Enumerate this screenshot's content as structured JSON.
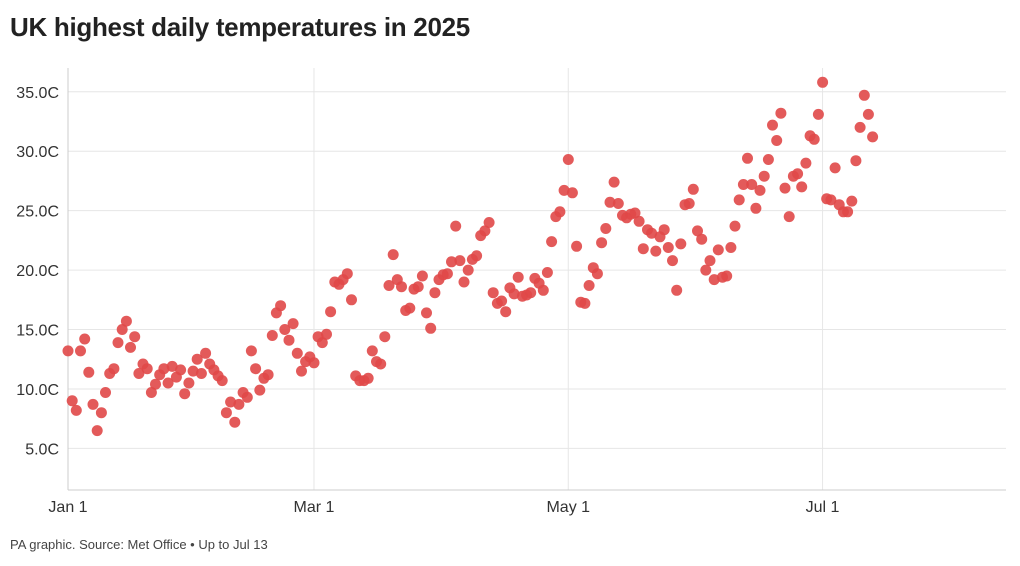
{
  "title": "UK highest daily temperatures in 2025",
  "source": "PA graphic. Source: Met Office • Up to Jul 13",
  "colors": {
    "point": "#e04848",
    "grid": "#e6e6e6",
    "axis": "#cccccc"
  },
  "chart_data": {
    "type": "scatter",
    "title": "UK highest daily temperatures in 2025",
    "xlabel": "",
    "ylabel": "",
    "x_axis_type": "date",
    "xlim": [
      "2025-01-01",
      "2025-08-14"
    ],
    "ylim": [
      1.5,
      37
    ],
    "yticks": [
      5,
      10,
      15,
      20,
      25,
      30,
      35
    ],
    "ytick_labels": [
      "5.0C",
      "10.0C",
      "15.0C",
      "20.0C",
      "25.0C",
      "30.0C",
      "35.0C"
    ],
    "xticks": [
      "2025-01-01",
      "2025-03-01",
      "2025-05-01",
      "2025-07-01"
    ],
    "xtick_labels": [
      "Jan 1",
      "Mar 1",
      "May 1",
      "Jul 1"
    ],
    "grid": true,
    "legend": "none",
    "series": [
      {
        "x": [
          "2025-01-01",
          "2025-01-02",
          "2025-01-03",
          "2025-01-04",
          "2025-01-05",
          "2025-01-06",
          "2025-01-07",
          "2025-01-08",
          "2025-01-09",
          "2025-01-10",
          "2025-01-11",
          "2025-01-12",
          "2025-01-13",
          "2025-01-14",
          "2025-01-15",
          "2025-01-16",
          "2025-01-17",
          "2025-01-18",
          "2025-01-19",
          "2025-01-20",
          "2025-01-21",
          "2025-01-22",
          "2025-01-23",
          "2025-01-24",
          "2025-01-25",
          "2025-01-26",
          "2025-01-27",
          "2025-01-28",
          "2025-01-29",
          "2025-01-30",
          "2025-01-31",
          "2025-02-01",
          "2025-02-02",
          "2025-02-03",
          "2025-02-04",
          "2025-02-05",
          "2025-02-06",
          "2025-02-07",
          "2025-02-08",
          "2025-02-09",
          "2025-02-10",
          "2025-02-11",
          "2025-02-12",
          "2025-02-13",
          "2025-02-14",
          "2025-02-15",
          "2025-02-16",
          "2025-02-17",
          "2025-02-18",
          "2025-02-19",
          "2025-02-20",
          "2025-02-21",
          "2025-02-22",
          "2025-02-23",
          "2025-02-24",
          "2025-02-25",
          "2025-02-26",
          "2025-02-27",
          "2025-02-28",
          "2025-03-01",
          "2025-03-02",
          "2025-03-03",
          "2025-03-04",
          "2025-03-05",
          "2025-03-06",
          "2025-03-07",
          "2025-03-08",
          "2025-03-09",
          "2025-03-10",
          "2025-03-11",
          "2025-03-12",
          "2025-03-13",
          "2025-03-14",
          "2025-03-15",
          "2025-03-16",
          "2025-03-17",
          "2025-03-18",
          "2025-03-19",
          "2025-03-20",
          "2025-03-21",
          "2025-03-22",
          "2025-03-23",
          "2025-03-24",
          "2025-03-25",
          "2025-03-26",
          "2025-03-27",
          "2025-03-28",
          "2025-03-29",
          "2025-03-30",
          "2025-03-31",
          "2025-04-01",
          "2025-04-02",
          "2025-04-03",
          "2025-04-04",
          "2025-04-05",
          "2025-04-06",
          "2025-04-07",
          "2025-04-08",
          "2025-04-09",
          "2025-04-10",
          "2025-04-11",
          "2025-04-12",
          "2025-04-13",
          "2025-04-14",
          "2025-04-15",
          "2025-04-16",
          "2025-04-17",
          "2025-04-18",
          "2025-04-19",
          "2025-04-20",
          "2025-04-21",
          "2025-04-22",
          "2025-04-23",
          "2025-04-24",
          "2025-04-25",
          "2025-04-26",
          "2025-04-27",
          "2025-04-28",
          "2025-04-29",
          "2025-04-30",
          "2025-05-01",
          "2025-05-02",
          "2025-05-03",
          "2025-05-04",
          "2025-05-05",
          "2025-05-06",
          "2025-05-07",
          "2025-05-08",
          "2025-05-09",
          "2025-05-10",
          "2025-05-11",
          "2025-05-12",
          "2025-05-13",
          "2025-05-14",
          "2025-05-15",
          "2025-05-16",
          "2025-05-17",
          "2025-05-18",
          "2025-05-19",
          "2025-05-20",
          "2025-05-21",
          "2025-05-22",
          "2025-05-23",
          "2025-05-24",
          "2025-05-25",
          "2025-05-26",
          "2025-05-27",
          "2025-05-28",
          "2025-05-29",
          "2025-05-30",
          "2025-05-31",
          "2025-06-01",
          "2025-06-02",
          "2025-06-03",
          "2025-06-04",
          "2025-06-05",
          "2025-06-06",
          "2025-06-07",
          "2025-06-08",
          "2025-06-09",
          "2025-06-10",
          "2025-06-11",
          "2025-06-12",
          "2025-06-13",
          "2025-06-14",
          "2025-06-15",
          "2025-06-16",
          "2025-06-17",
          "2025-06-18",
          "2025-06-19",
          "2025-06-20",
          "2025-06-21",
          "2025-06-22",
          "2025-06-23",
          "2025-06-24",
          "2025-06-25",
          "2025-06-26",
          "2025-06-27",
          "2025-06-28",
          "2025-06-29",
          "2025-06-30",
          "2025-07-01",
          "2025-07-02",
          "2025-07-03",
          "2025-07-04",
          "2025-07-05",
          "2025-07-06",
          "2025-07-07",
          "2025-07-08",
          "2025-07-09",
          "2025-07-10",
          "2025-07-11",
          "2025-07-12",
          "2025-07-13"
        ],
        "y": [
          13.2,
          9.0,
          8.2,
          13.2,
          14.2,
          11.4,
          8.7,
          6.5,
          8.0,
          9.7,
          11.3,
          11.7,
          13.9,
          15.0,
          15.7,
          13.5,
          14.4,
          11.3,
          12.1,
          11.7,
          9.7,
          10.4,
          11.2,
          11.7,
          10.5,
          11.9,
          11.0,
          11.6,
          9.6,
          10.5,
          11.5,
          12.5,
          11.3,
          13.0,
          12.1,
          11.6,
          11.1,
          10.7,
          8.0,
          8.9,
          7.2,
          8.7,
          9.7,
          9.3,
          13.2,
          11.7,
          9.9,
          10.9,
          11.2,
          14.5,
          16.4,
          17.0,
          15.0,
          14.1,
          15.5,
          13.0,
          11.5,
          12.3,
          12.7,
          12.2,
          14.4,
          13.9,
          14.6,
          16.5,
          19.0,
          18.8,
          19.2,
          19.7,
          17.5,
          11.1,
          10.7,
          10.7,
          10.9,
          13.2,
          12.3,
          12.1,
          14.4,
          18.7,
          21.3,
          19.2,
          18.6,
          16.6,
          16.8,
          18.4,
          18.6,
          19.5,
          16.4,
          15.1,
          18.1,
          19.2,
          19.6,
          19.7,
          20.7,
          23.7,
          20.8,
          19.0,
          20.0,
          20.9,
          21.2,
          22.9,
          23.3,
          24.0,
          18.1,
          17.2,
          17.4,
          16.5,
          18.5,
          18.0,
          19.4,
          17.8,
          17.9,
          18.1,
          19.3,
          18.9,
          18.3,
          19.8,
          22.4,
          24.5,
          24.9,
          26.7,
          29.3,
          26.5,
          22.0,
          17.3,
          17.2,
          18.7,
          20.2,
          19.7,
          22.3,
          23.5,
          25.7,
          27.4,
          25.6,
          24.6,
          24.4,
          24.7,
          24.8,
          24.1,
          21.8,
          23.4,
          23.1,
          21.6,
          22.8,
          23.4,
          21.9,
          20.8,
          18.3,
          22.2,
          25.5,
          25.6,
          26.8,
          23.3,
          22.6,
          20.0,
          20.8,
          19.2,
          21.7,
          19.4,
          19.5,
          21.9,
          23.7,
          25.9,
          27.2,
          29.4,
          27.2,
          25.2,
          26.7,
          27.9,
          29.3,
          32.2,
          30.9,
          33.2,
          26.9,
          24.5,
          27.9,
          28.1,
          27.0,
          29.0,
          31.3,
          31.0,
          33.1,
          35.8,
          26.0,
          25.9,
          28.6,
          25.5,
          24.9,
          24.9,
          25.8,
          29.2,
          32.0,
          34.7,
          33.1,
          31.2
        ]
      }
    ]
  }
}
